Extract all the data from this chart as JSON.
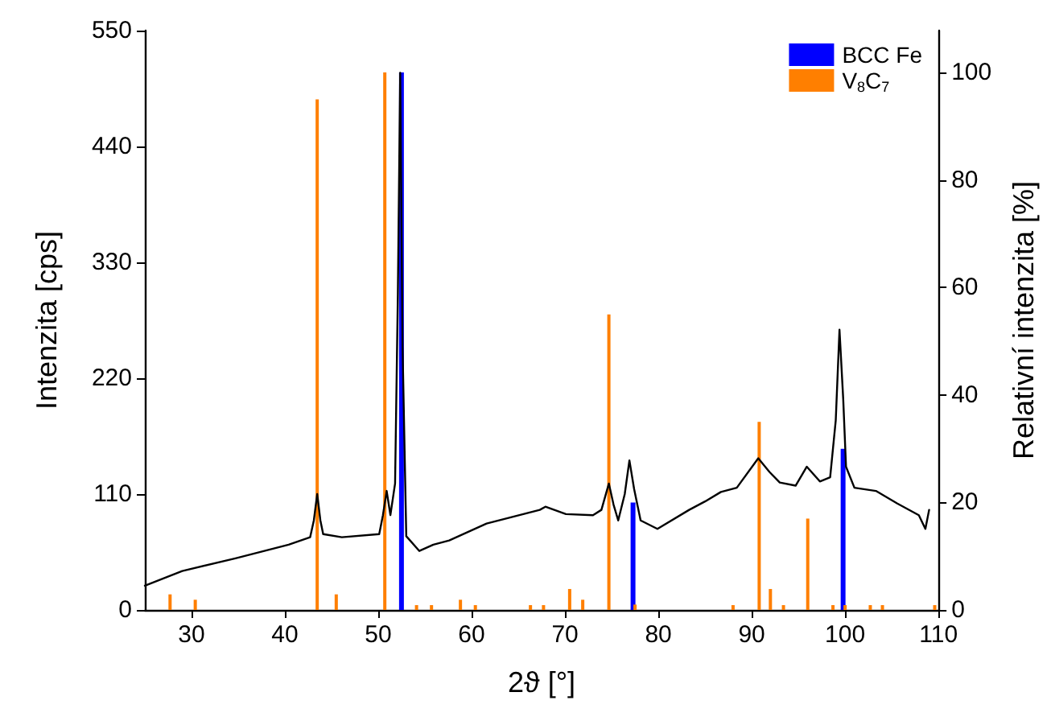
{
  "chart_data": {
    "type": "line",
    "xlabel": "2ϑ [°]",
    "ylabel": "Intenzita [cps]",
    "y2label": "Relativní intenzita [%]",
    "xlim": [
      25,
      110
    ],
    "xticks": [
      30,
      40,
      50,
      60,
      70,
      80,
      90,
      100,
      110
    ],
    "ylim": [
      0,
      550
    ],
    "yticks": [
      0,
      110,
      220,
      330,
      440,
      550
    ],
    "y2lim": [
      0,
      107.8
    ],
    "y2ticks": [
      0,
      20,
      40,
      60,
      80,
      100
    ],
    "legend": "top right",
    "grid": false,
    "series": [
      {
        "color": "#000000",
        "x": [
          25,
          29,
          34.7,
          40.4,
          42.7,
          43.1,
          43.46,
          43.8,
          44.1,
          46.1,
          50.1,
          50.5,
          50.9,
          51.3,
          51.8,
          52.1,
          52.35,
          52.6,
          53.0,
          54.4,
          55.9,
          57.6,
          61.6,
          67.3,
          67.9,
          70.1,
          73.0,
          73.9,
          74.7,
          75.2,
          75.7,
          76.4,
          76.9,
          77.4,
          78.1,
          79.9,
          83.3,
          85.0,
          86.7,
          88.4,
          90.7,
          91.9,
          93.0,
          94.7,
          95.9,
          97.3,
          98.4,
          99.0,
          99.4,
          99.8,
          100.1,
          101.0,
          103.3,
          105.6,
          107.9,
          108.6,
          109.0
        ],
        "values": [
          23,
          37,
          49,
          62,
          69,
          85,
          110,
          85,
          72,
          69,
          72,
          90,
          113,
          90,
          120,
          300,
          510,
          250,
          70,
          56,
          62,
          66,
          82,
          95,
          98,
          91,
          90,
          95,
          120,
          100,
          85,
          110,
          142,
          115,
          85,
          77,
          95,
          103,
          112,
          116,
          144,
          131,
          121,
          118,
          136,
          122,
          126,
          180,
          266,
          200,
          136,
          116,
          113,
          101,
          90,
          77,
          95
        ]
      },
      {
        "type": "bar",
        "name": "BCC Fe",
        "color": "#0000ff",
        "axis": "y2",
        "x": [
          52.4,
          77.2,
          99.7
        ],
        "values": [
          100,
          20,
          30
        ]
      },
      {
        "type": "bar",
        "name": "V$_{8}$C$_{7}$",
        "color": "#ff7f00",
        "axis": "y2",
        "x": [
          27.7,
          30.4,
          43.46,
          45.5,
          50.7,
          54.1,
          55.7,
          58.8,
          60.4,
          66.3,
          67.7,
          70.5,
          71.9,
          74.7,
          77.5,
          88.0,
          90.8,
          92.0,
          93.4,
          96.0,
          98.7,
          100.0,
          102.7,
          104.0,
          109.6
        ],
        "values": [
          2.9,
          1.9,
          95,
          2.9,
          100,
          0.9,
          0.9,
          1.9,
          0.9,
          0.9,
          0.9,
          3.9,
          1.9,
          55,
          1,
          0.9,
          35,
          3.9,
          0.9,
          17,
          0.9,
          0.9,
          0.9,
          0.9,
          0.9
        ]
      }
    ]
  }
}
